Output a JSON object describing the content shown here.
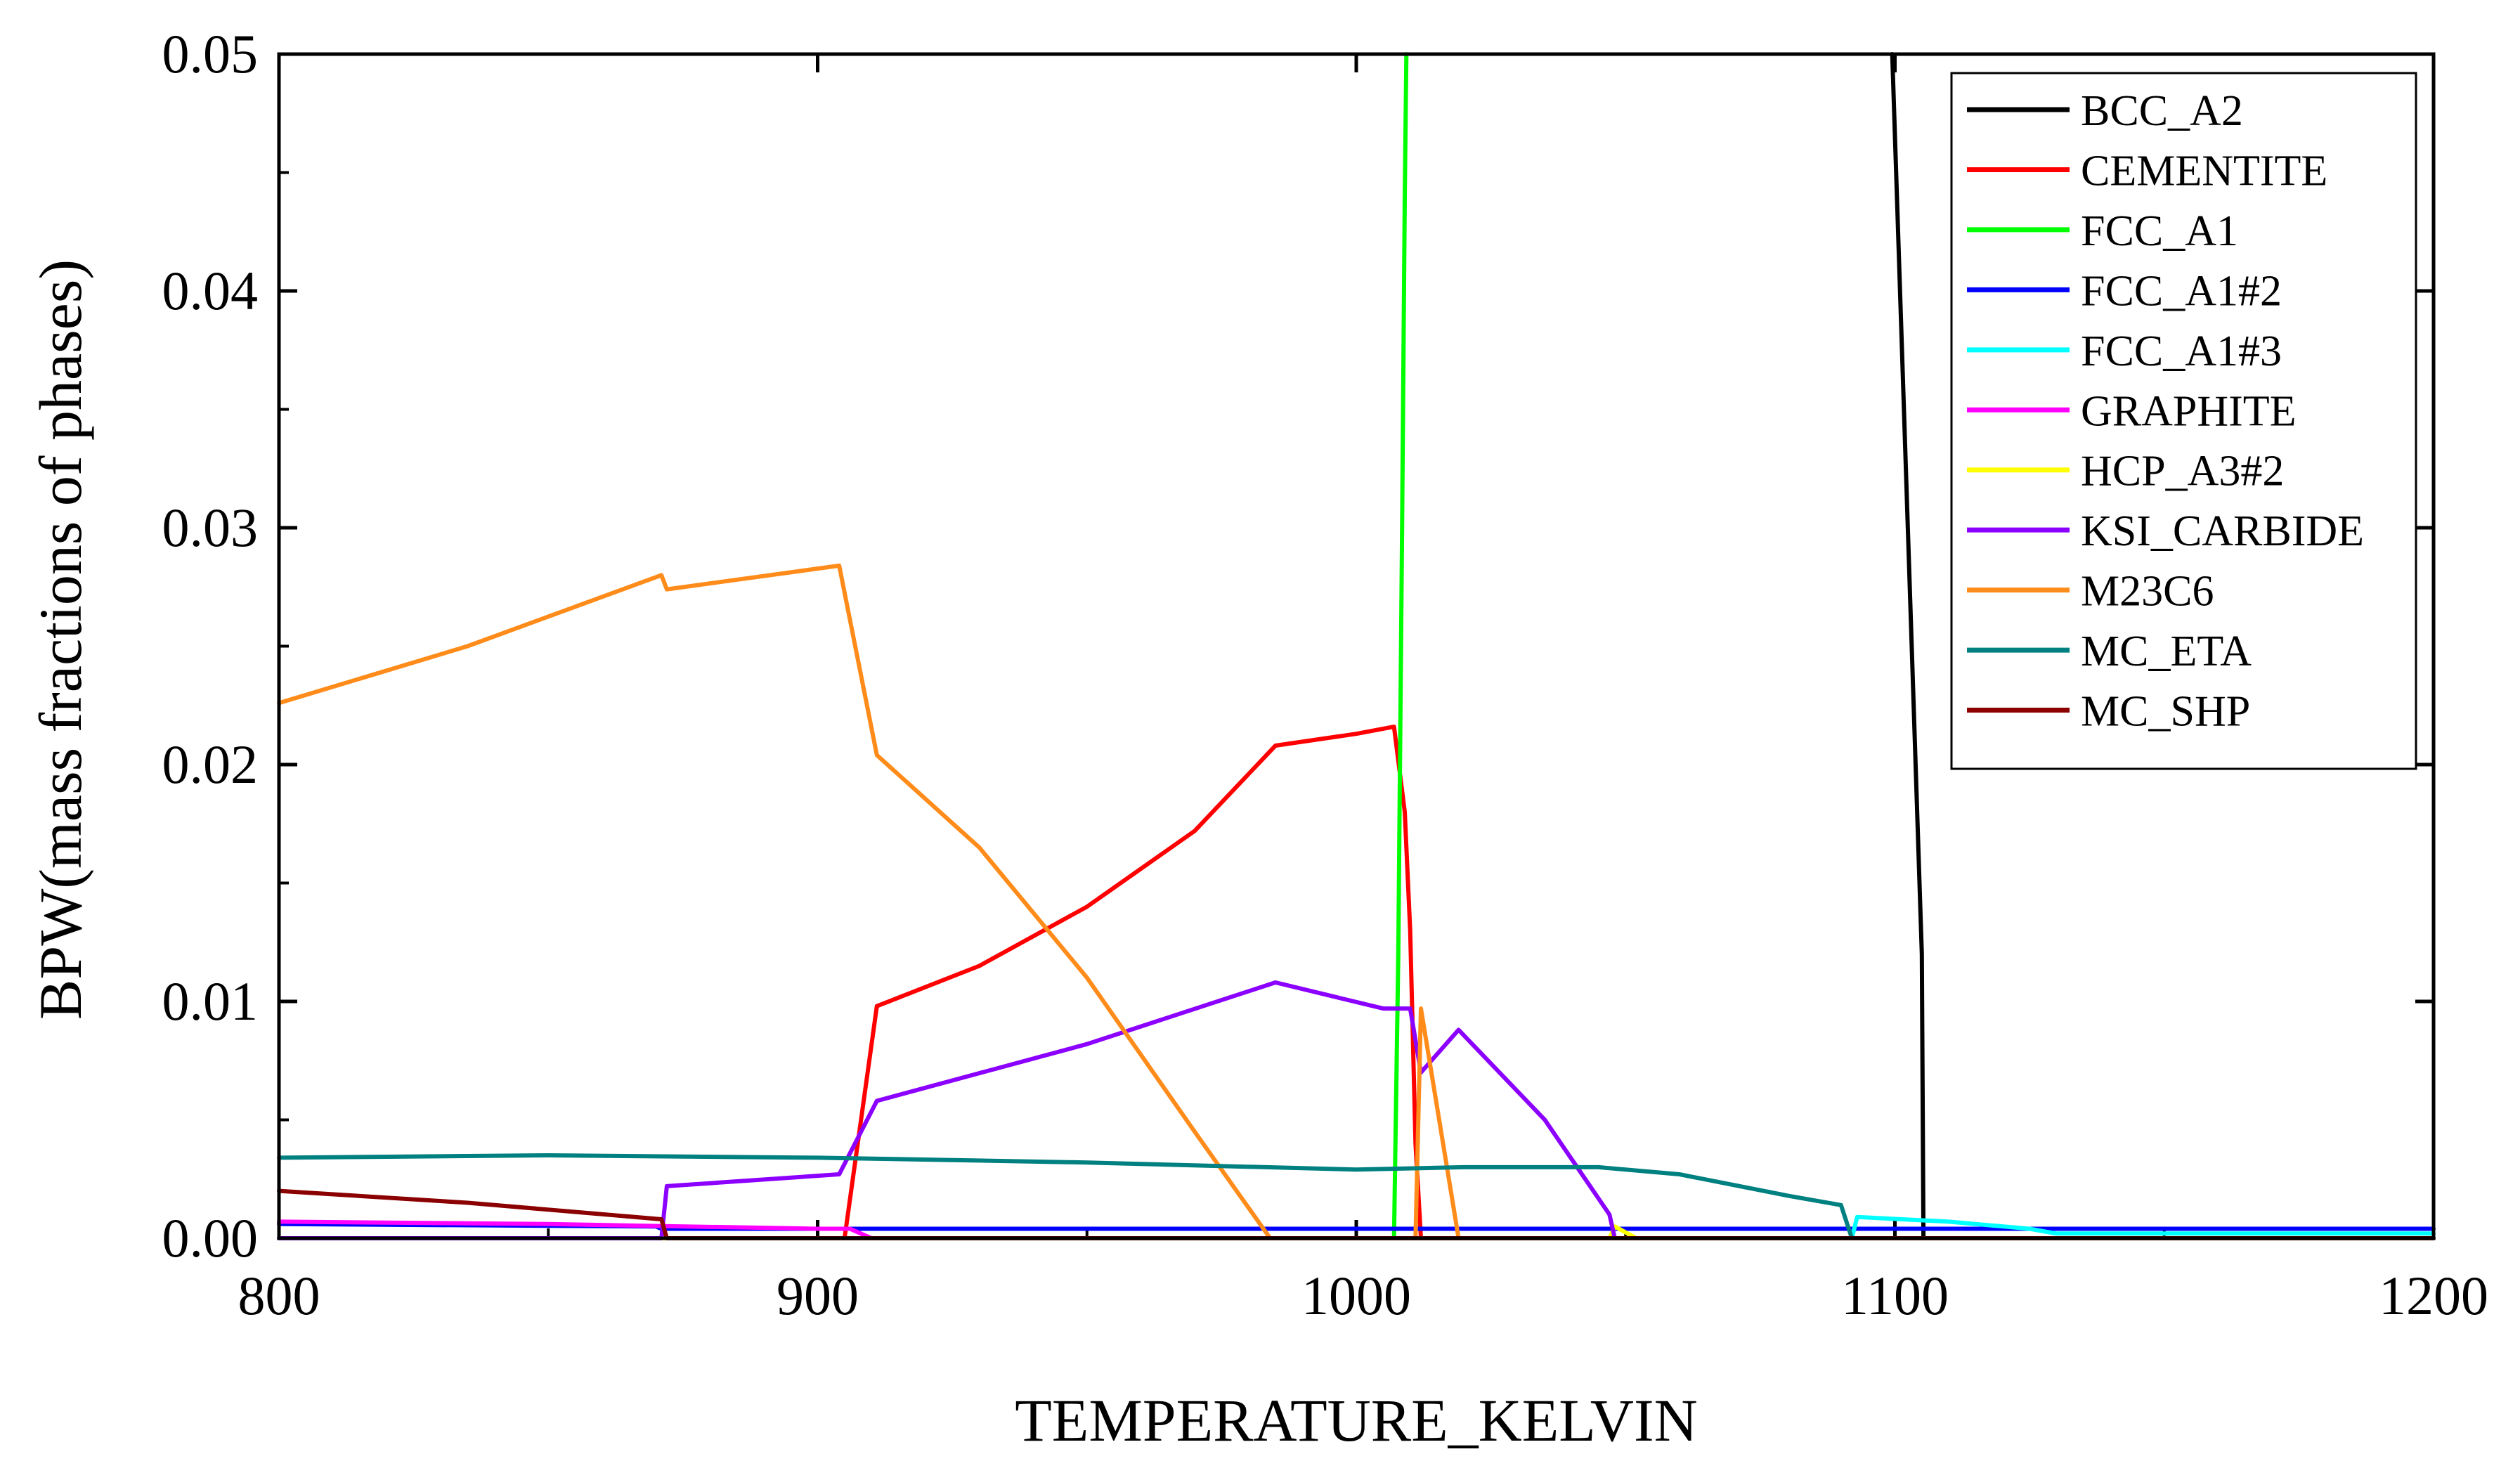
{
  "chart_data": {
    "type": "line",
    "title": "",
    "xlabel": "TEMPERATURE_KELVIN",
    "ylabel": "BPW(mass fractions of phases)",
    "xlim": [
      800,
      1200
    ],
    "ylim": [
      0,
      0.05
    ],
    "grid": false,
    "legend_position": "top-right",
    "xticks": [
      {
        "value": 800,
        "label": "800"
      },
      {
        "value": 900,
        "label": "900"
      },
      {
        "value": 1000,
        "label": "1000"
      },
      {
        "value": 1100,
        "label": "1100"
      },
      {
        "value": 1200,
        "label": "1200"
      }
    ],
    "yticks": [
      {
        "value": 0,
        "label": "0.00"
      },
      {
        "value": 0.01,
        "label": "0.01"
      },
      {
        "value": 0.02,
        "label": "0.02"
      },
      {
        "value": 0.03,
        "label": "0.03"
      },
      {
        "value": 0.04,
        "label": "0.04"
      },
      {
        "value": 0.05,
        "label": "0.05"
      }
    ],
    "series": [
      {
        "name": "BCC_A2",
        "color": "#000000",
        "x": [
          1099.5,
          1105,
          1105.3,
          1200
        ],
        "y": [
          0.05,
          0.012,
          0,
          0
        ]
      },
      {
        "name": "CEMENTITE",
        "color": "#ff0000",
        "x": [
          800,
          905,
          911,
          930,
          950,
          970,
          985,
          1000,
          1007,
          1009,
          1010,
          1011,
          1012,
          1200
        ],
        "y": [
          0,
          0,
          0.0098,
          0.0115,
          0.014,
          0.0172,
          0.0208,
          0.0213,
          0.0216,
          0.018,
          0.013,
          0.004,
          0,
          0
        ]
      },
      {
        "name": "FCC_A1",
        "color": "#00ff00",
        "x": [
          800,
          1007,
          1007.8,
          1008.5,
          1009,
          1009.3
        ],
        "y": [
          0,
          0,
          0.012,
          0.03,
          0.044,
          0.05
        ]
      },
      {
        "name": "FCC_A1#2",
        "color": "#0000ff",
        "x": [
          800,
          870,
          871,
          900,
          950,
          1000,
          1050,
          1100,
          1200
        ],
        "y": [
          0.0006,
          0.0005,
          0.0004,
          0.0004,
          0.0004,
          0.0004,
          0.0004,
          0.0004,
          0.0004
        ]
      },
      {
        "name": "FCC_A1#3",
        "color": "#00ffff",
        "x": [
          800,
          1092,
          1093,
          1110,
          1125,
          1130,
          1200
        ],
        "y": [
          0,
          0,
          0.0009,
          0.0007,
          0.0004,
          0.0002,
          0.0002
        ]
      },
      {
        "name": "GRAPHITE",
        "color": "#ff00ff",
        "x": [
          800,
          850,
          900,
          906,
          910,
          1200
        ],
        "y": [
          0.0007,
          0.0006,
          0.0004,
          0.0004,
          0,
          0
        ]
      },
      {
        "name": "HCP_A3#2",
        "color": "#ffff00",
        "x": [
          800,
          1047,
          1048,
          1052,
          1200
        ],
        "y": [
          0,
          0,
          0.0005,
          0,
          0
        ]
      },
      {
        "name": "KSI_CARBIDE",
        "color": "#8b00ff",
        "x": [
          800,
          871,
          872,
          904,
          911,
          950,
          985,
          1005,
          1010,
          1012,
          1019,
          1035,
          1047,
          1048,
          1200
        ],
        "y": [
          0,
          0,
          0.0022,
          0.0027,
          0.0058,
          0.0082,
          0.0108,
          0.0097,
          0.0097,
          0.007,
          0.0088,
          0.005,
          0.001,
          0,
          0
        ]
      },
      {
        "name": "M23C6",
        "color": "#ff8c1a",
        "x": [
          800,
          835,
          871,
          872,
          904,
          911,
          930,
          950,
          970,
          984,
          985,
          1011,
          1012,
          1019,
          1020,
          1200
        ],
        "y": [
          0.0226,
          0.025,
          0.028,
          0.0274,
          0.0284,
          0.0204,
          0.0165,
          0.011,
          0.0045,
          0,
          0,
          0,
          0.0097,
          0,
          0,
          0
        ]
      },
      {
        "name": "MC_ETA",
        "color": "#008080",
        "x": [
          800,
          850,
          900,
          950,
          1000,
          1020,
          1045,
          1060,
          1080,
          1090,
          1092,
          1200
        ],
        "y": [
          0.0034,
          0.0035,
          0.0034,
          0.0032,
          0.0029,
          0.003,
          0.003,
          0.0027,
          0.0018,
          0.0014,
          0,
          0
        ]
      },
      {
        "name": "MC_SHP",
        "color": "#8b0000",
        "x": [
          800,
          835,
          871,
          872,
          1200
        ],
        "y": [
          0.002,
          0.0015,
          0.0008,
          0,
          0
        ]
      }
    ]
  }
}
